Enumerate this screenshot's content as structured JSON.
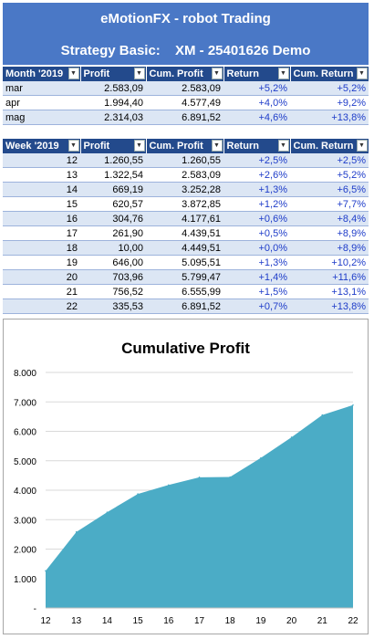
{
  "header": {
    "title": "eMotionFX - robot Trading",
    "strategy_label": "Strategy Basic:",
    "account": "XM - 25401626 Demo"
  },
  "monthly": {
    "columns": [
      "Month '2019",
      "Profit",
      "Cum. Profit",
      "Return",
      "Cum. Return"
    ],
    "rows": [
      [
        "mar",
        "2.583,09",
        "2.583,09",
        "+5,2%",
        "+5,2%"
      ],
      [
        "apr",
        "1.994,40",
        "4.577,49",
        "+4,0%",
        "+9,2%"
      ],
      [
        "mag",
        "2.314,03",
        "6.891,52",
        "+4,6%",
        "+13,8%"
      ]
    ]
  },
  "weekly": {
    "columns": [
      "Week '2019",
      "Profit",
      "Cum. Profit",
      "Return",
      "Cum. Return"
    ],
    "rows": [
      [
        "12",
        "1.260,55",
        "1.260,55",
        "+2,5%",
        "+2,5%"
      ],
      [
        "13",
        "1.322,54",
        "2.583,09",
        "+2,6%",
        "+5,2%"
      ],
      [
        "14",
        "669,19",
        "3.252,28",
        "+1,3%",
        "+6,5%"
      ],
      [
        "15",
        "620,57",
        "3.872,85",
        "+1,2%",
        "+7,7%"
      ],
      [
        "16",
        "304,76",
        "4.177,61",
        "+0,6%",
        "+8,4%"
      ],
      [
        "17",
        "261,90",
        "4.439,51",
        "+0,5%",
        "+8,9%"
      ],
      [
        "18",
        "10,00",
        "4.449,51",
        "+0,0%",
        "+8,9%"
      ],
      [
        "19",
        "646,00",
        "5.095,51",
        "+1,3%",
        "+10,2%"
      ],
      [
        "20",
        "703,96",
        "5.799,47",
        "+1,4%",
        "+11,6%"
      ],
      [
        "21",
        "756,52",
        "6.555,99",
        "+1,5%",
        "+13,1%"
      ],
      [
        "22",
        "335,53",
        "6.891,52",
        "+0,7%",
        "+13,8%"
      ]
    ]
  },
  "colors": {
    "banner": "#4a78c6",
    "table_header": "#234a8c",
    "row_band": "#dce6f4",
    "return_text": "#1f3dc9",
    "area_fill": "#4bacc6"
  },
  "chart_data": {
    "type": "area",
    "title": "Cumulative Profit",
    "xlabel": "",
    "ylabel": "",
    "categories": [
      "12",
      "13",
      "14",
      "15",
      "16",
      "17",
      "18",
      "19",
      "20",
      "21",
      "22"
    ],
    "values": [
      1260.55,
      2583.09,
      3252.28,
      3872.85,
      4177.61,
      4439.51,
      4449.51,
      5095.51,
      5799.47,
      6555.99,
      6891.52
    ],
    "ylim": [
      0,
      8000
    ],
    "yticks": [
      "-",
      "1.000",
      "2.000",
      "3.000",
      "4.000",
      "5.000",
      "6.000",
      "7.000",
      "8.000"
    ],
    "grid": true,
    "legend": "none"
  }
}
